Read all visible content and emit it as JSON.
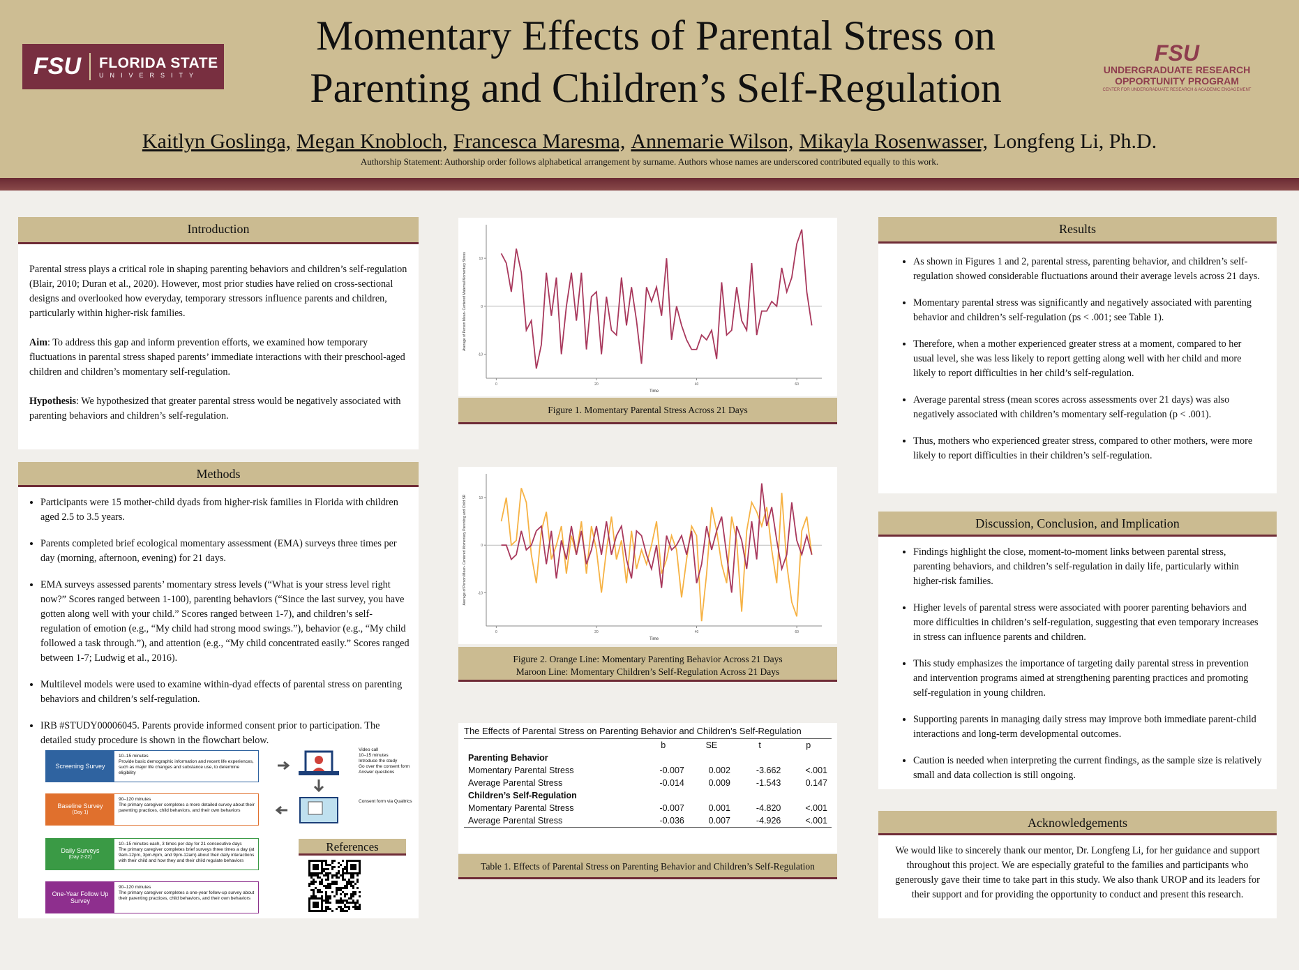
{
  "header": {
    "logo_left": {
      "mark": "FSU",
      "name": "FLORIDA STATE",
      "sub": "UNIVERSITY"
    },
    "title_lines": [
      "Momentary Effects of Parental Stress on",
      "Parenting and Children’s Self-Regulation"
    ],
    "logo_right": {
      "mark": "FSU",
      "line1": "UNDERGRADUATE RESEARCH",
      "line2": "OPPORTUNITY PROGRAM",
      "line3": "CENTER FOR UNDERGRADUATE RESEARCH & ACADEMIC ENGAGEMENT"
    },
    "authors": [
      {
        "name": "Kaitlyn Goslinga,",
        "underline": true
      },
      {
        "name": "Megan Knobloch,",
        "underline": true
      },
      {
        "name": "Francesca Maresma,",
        "underline": true
      },
      {
        "name": "Annemarie Wilson,",
        "underline": true
      },
      {
        "name": "Mikayla Rosenwasser,",
        "underline": true
      },
      {
        "name": "Longfeng Li, Ph.D.",
        "underline": false
      }
    ],
    "statement": "Authorship Statement: Authorship order follows alphabetical arrangement by surname. Authors whose names are underscored contributed equally to this work."
  },
  "introduction": {
    "heading": "Introduction",
    "paragraphs": [
      {
        "text": "Parental stress plays a critical role in shaping parenting behaviors and children’s self-regulation (Blair, 2010; Duran et al., 2020). However, most prior studies have relied on cross-sectional designs and overlooked how everyday, temporary stressors influence parents and children, particularly within higher-risk families."
      },
      {
        "lead": "Aim",
        "text": ": To address this gap and inform prevention efforts, we examined how temporary fluctuations in parental stress shaped parents’ immediate interactions with their preschool-aged children and children’s momentary self-regulation."
      },
      {
        "lead": "Hypothesis",
        "text": ": We hypothesized that greater parental stress would be negatively associated with parenting behaviors and children’s self-regulation."
      }
    ]
  },
  "methods": {
    "heading": "Methods",
    "bullets": [
      "Participants were 15 mother-child dyads from higher-risk families in Florida with children aged 2.5 to 3.5 years.",
      "Parents completed brief ecological momentary assessment (EMA) surveys three times per day (morning, afternoon, evening) for 21 days.",
      "EMA surveys assessed parents’ momentary stress levels (“What is your stress level right now?” Scores ranged between 1-100), parenting behaviors (“Since the last survey, you have gotten along well with your child.” Scores ranged between 1-7), and children’s self-regulation of emotion (e.g., “My child had strong mood swings.”), behavior (e.g., “My child followed a task through.”), and attention (e.g., “My child concentrated easily.” Scores ranged between 1-7; Ludwig et al., 2016).",
      "Multilevel models were used to examine within-dyad effects of parental stress on parenting behaviors and children’s self-regulation.",
      "IRB #STUDY00006045. Parents provide informed consent prior to participation. The detailed study procedure is shown in the flowchart below."
    ],
    "flowchart": {
      "steps": [
        {
          "label": "Screening Survey",
          "notes": [
            "10–15 minutes",
            "Provide basic demographic information and recent life experiences, such as major life changes and substance use, to determine eligibility"
          ]
        },
        {
          "label": "Baseline Survey",
          "sub": "(Day 1)",
          "notes": [
            "90–120 minutes",
            "The primary caregiver completes a more detailed survey about their parenting practices, child behaviors, and their own behaviors"
          ]
        },
        {
          "label": "Daily Surveys",
          "sub": "(Day 2-22)",
          "notes": [
            "10–15 minutes each, 3 times per day for 21 consecutive days",
            "The primary caregiver completes brief surveys three times a day (at 9am-12pm, 3pm-6pm, and 9pm-12am) about their daily interactions with their child and how they and their child regulate behaviors"
          ]
        },
        {
          "label": "One-Year Follow Up Survey",
          "notes": [
            "90–120 minutes",
            "The primary caregiver completes a one-year follow-up survey about their parenting practices, child behaviors, and their own behaviors"
          ]
        }
      ],
      "call_notes": [
        "Video call",
        "10–15 minutes",
        "Introduce the study",
        "Go over the consent form",
        "Answer questions"
      ],
      "consent_note": "Consent form via Qualtrics"
    },
    "references": "References"
  },
  "chart_data": [
    {
      "type": "line",
      "ylabel": "Average of Person Mean- Centered Maternal Momentary Stress",
      "xlabel": "Time",
      "xlim": [
        -2,
        65
      ],
      "xticks": [
        0,
        20,
        40,
        60
      ],
      "ylim": [
        -15,
        17
      ],
      "yticks": [
        -10,
        0,
        10
      ],
      "zero_line": true,
      "x": [
        1,
        2,
        3,
        4,
        5,
        6,
        7,
        8,
        9,
        10,
        11,
        12,
        13,
        14,
        15,
        16,
        17,
        18,
        19,
        20,
        21,
        22,
        23,
        24,
        25,
        26,
        27,
        28,
        29,
        30,
        31,
        32,
        33,
        34,
        35,
        36,
        37,
        38,
        39,
        40,
        41,
        42,
        43,
        44,
        45,
        46,
        47,
        48,
        49,
        50,
        51,
        52,
        53,
        54,
        55,
        56,
        57,
        58,
        59,
        60,
        61,
        62,
        63
      ],
      "series": [
        {
          "color": "#a8385c",
          "values": [
            11,
            9,
            3,
            12,
            7,
            -5,
            -3,
            -13,
            -8,
            7,
            -2,
            6,
            -10,
            0,
            7,
            -3,
            7,
            -9,
            2,
            3,
            -10,
            2,
            -5,
            -6,
            6,
            -4,
            4,
            -3,
            -12,
            4,
            1,
            4,
            -2,
            10,
            -7,
            0,
            -4,
            -7,
            -9,
            -9,
            -6,
            -7,
            -5,
            -11,
            5,
            -6,
            -5,
            4,
            -3,
            -5,
            9,
            -6,
            -1,
            -1,
            1,
            0,
            8,
            3,
            6,
            13,
            16,
            3,
            -4
          ]
        }
      ],
      "caption": "Figure 1. Momentary Parental Stress Across 21 Days"
    },
    {
      "type": "line",
      "ylabel": "Average of Person Mean- Centered Momentary Parenting and Child SR",
      "xlabel": "Time",
      "xlim": [
        -2,
        65
      ],
      "xticks": [
        0,
        20,
        40,
        60
      ],
      "ylim": [
        -17,
        15
      ],
      "yticks": [
        -10,
        0,
        10
      ],
      "zero_line": true,
      "x": [
        1,
        2,
        3,
        4,
        5,
        6,
        7,
        8,
        9,
        10,
        11,
        12,
        13,
        14,
        15,
        16,
        17,
        18,
        19,
        20,
        21,
        22,
        23,
        24,
        25,
        26,
        27,
        28,
        29,
        30,
        31,
        32,
        33,
        34,
        35,
        36,
        37,
        38,
        39,
        40,
        41,
        42,
        43,
        44,
        45,
        46,
        47,
        48,
        49,
        50,
        51,
        52,
        53,
        54,
        55,
        56,
        57,
        58,
        59,
        60,
        61,
        62,
        63
      ],
      "series": [
        {
          "color": "#f6b244",
          "values": [
            5,
            10,
            0,
            1,
            12,
            9,
            -2,
            -8,
            3,
            7,
            -3,
            0,
            4,
            -6,
            2,
            -2,
            5,
            -6,
            4,
            -1,
            -10,
            -1,
            6,
            -3,
            1,
            -8,
            3,
            -5,
            -1,
            -4,
            0,
            5,
            -6,
            -3,
            2,
            -1,
            -11,
            -3,
            4,
            2,
            -16,
            -6,
            8,
            3,
            -4,
            -8,
            6,
            1,
            -14,
            3,
            9,
            7,
            4,
            8,
            -1,
            -8,
            11,
            -4,
            -12,
            -15,
            3,
            6,
            -2
          ]
        },
        {
          "color": "#a8385c",
          "values": [
            0,
            0,
            -3,
            -2,
            3,
            -1,
            0,
            3,
            4,
            -4,
            3,
            -7,
            1,
            -3,
            4,
            -2,
            3,
            -4,
            -1,
            4,
            -2,
            5,
            -2,
            2,
            4,
            -3,
            -7,
            3,
            2,
            -2,
            -5,
            0,
            -9,
            2,
            -1,
            0,
            2,
            -2,
            3,
            -8,
            -4,
            4,
            -1,
            3,
            6,
            -2,
            -10,
            4,
            1,
            -5,
            5,
            -3,
            13,
            4,
            8,
            1,
            -5,
            -2,
            9,
            1,
            -2,
            2,
            -2
          ]
        }
      ],
      "caption": [
        "Figure 2. Orange Line: Momentary Parenting Behavior Across 21 Days",
        "Maroon Line: Momentary Children’s Self-Regulation Across 21 Days"
      ]
    }
  ],
  "table": {
    "title": "The Effects of Parental Stress on Parenting Behavior and Children’s Self-Regulation",
    "columns": [
      "b",
      "SE",
      "t",
      "p"
    ],
    "groups": [
      {
        "name": "Parenting Behavior",
        "rows": [
          [
            "Momentary Parental Stress",
            "-0.007",
            "0.002",
            "-3.662",
            "<.001"
          ],
          [
            "Average Parental Stress",
            "-0.014",
            "0.009",
            "-1.543",
            "0.147"
          ]
        ]
      },
      {
        "name": "Children’s Self-Regulation",
        "rows": [
          [
            "Momentary Parental Stress",
            "-0.007",
            "0.001",
            "-4.820",
            "<.001"
          ],
          [
            "Average Parental Stress",
            "-0.036",
            "0.007",
            "-4.926",
            "<.001"
          ]
        ]
      }
    ],
    "caption": "Table 1. Effects of Parental Stress on Parenting Behavior and Children’s Self-Regulation"
  },
  "results": {
    "heading": "Results",
    "bullets": [
      "As shown in Figures 1 and 2, parental stress, parenting behavior, and children’s self-regulation showed considerable fluctuations around their average levels across 21 days.",
      "Momentary parental stress was significantly and negatively associated with parenting behavior and children’s self-regulation (ps < .001; see Table 1).",
      "Therefore, when a mother experienced greater stress at a moment, compared to her usual level, she was less likely to report getting along well with her child and more likely to report difficulties in her child’s self-regulation.",
      "Average parental stress (mean scores across assessments over 21 days) was also negatively associated with children’s momentary self-regulation (p < .001).",
      "Thus, mothers who experienced greater stress, compared to other mothers, were more likely to report difficulties in their children’s self-regulation."
    ]
  },
  "discussion": {
    "heading": "Discussion, Conclusion, and Implication",
    "bullets": [
      "Findings highlight the close, moment-to-moment links between parental stress, parenting behaviors, and children’s self-regulation in daily life, particularly within higher-risk families.",
      "Higher levels of parental stress were associated with poorer parenting behaviors and more difficulties in children’s self-regulation, suggesting that even temporary increases in stress can influence parents and children.",
      "This study emphasizes the importance of targeting daily parental stress in prevention and intervention programs aimed at strengthening parenting practices and promoting self-regulation in young children.",
      "Supporting parents in managing daily stress may improve both immediate parent-child interactions and long-term developmental outcomes.",
      "Caution is needed when interpreting the current findings, as the sample size is relatively small and data collection is still ongoing."
    ]
  },
  "acknowledgements": {
    "heading": "Acknowledgements",
    "text": "We would like to sincerely thank our mentor, Dr. Longfeng Li, for her guidance and support throughout this project. We are especially grateful to the families and participants who generously gave their time to take part in this study. We also thank UROP and its leaders for their support and for providing the opportunity to conduct and present this research."
  }
}
